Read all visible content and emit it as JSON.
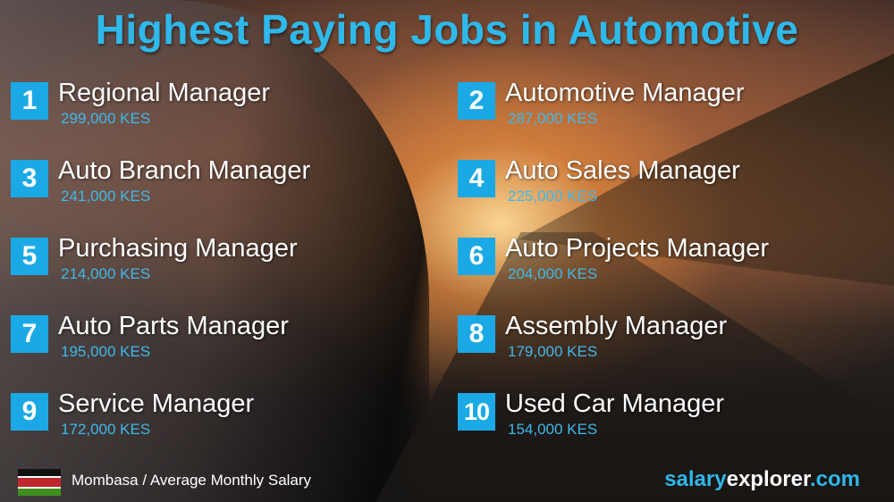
{
  "title": "Highest Paying Jobs in Automotive",
  "jobs": [
    {
      "rank": "1",
      "title": "Regional Manager",
      "salary": "299,000 KES"
    },
    {
      "rank": "2",
      "title": "Automotive Manager",
      "salary": "287,000 KES"
    },
    {
      "rank": "3",
      "title": "Auto Branch Manager",
      "salary": "241,000 KES"
    },
    {
      "rank": "4",
      "title": "Auto Sales Manager",
      "salary": "225,000 KES"
    },
    {
      "rank": "5",
      "title": "Purchasing Manager",
      "salary": "214,000 KES"
    },
    {
      "rank": "6",
      "title": "Auto Projects Manager",
      "salary": "204,000 KES"
    },
    {
      "rank": "7",
      "title": "Auto Parts Manager",
      "salary": "195,000 KES"
    },
    {
      "rank": "8",
      "title": "Assembly Manager",
      "salary": "179,000 KES"
    },
    {
      "rank": "9",
      "title": "Service Manager",
      "salary": "172,000 KES"
    },
    {
      "rank": "10",
      "title": "Used Car Manager",
      "salary": "154,000 KES"
    }
  ],
  "footer": {
    "location": "Mombasa / Average Monthly Salary",
    "brand_a": "salary",
    "brand_b": "explorer",
    "brand_c": ".com",
    "flag_icon": "kenya-flag-icon"
  },
  "colors": {
    "accent": "#1ba9e6",
    "title": "#2fb8ea",
    "salary_text": "#3fb8ea"
  }
}
